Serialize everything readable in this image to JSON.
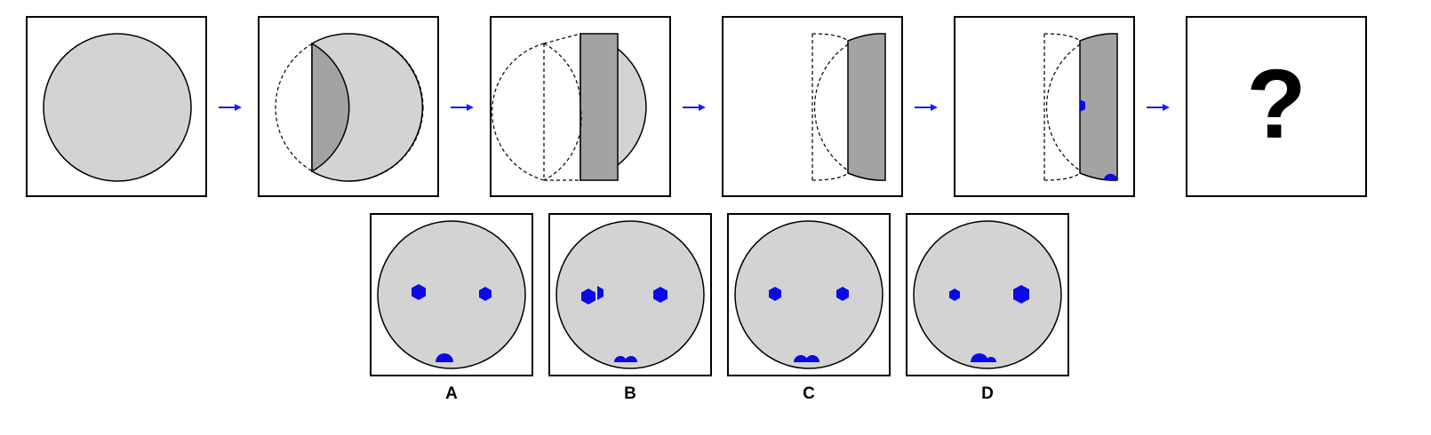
{
  "puzzle": {
    "question_mark": "?",
    "options": [
      {
        "label": "A"
      },
      {
        "label": "B"
      },
      {
        "label": "C"
      },
      {
        "label": "D"
      }
    ]
  },
  "colors": {
    "paper": "#d3d3d3",
    "paper_folded": "#a3a3a3",
    "hole": "#0a0ae6",
    "arrow": "#1a1aff",
    "outline": "#000000"
  }
}
